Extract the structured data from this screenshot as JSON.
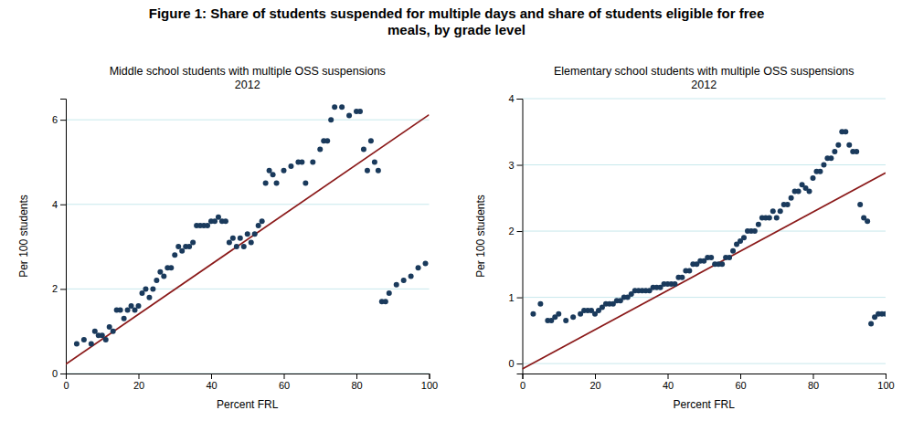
{
  "title": "Figure 1: Share of students suspended for multiple days and share of students eligible for free\nmeals, by grade level",
  "chart_data": [
    {
      "type": "scatter",
      "title": "Middle school students with multiple OSS suspensions\n2012",
      "xlabel": "Percent FRL",
      "ylabel": "Per 100 students",
      "xlim": [
        0,
        100
      ],
      "ylim": [
        0,
        6.5
      ],
      "xticks": [
        0,
        20,
        40,
        60,
        80,
        100
      ],
      "yticks": [
        0,
        2,
        4,
        6
      ],
      "grid": "y",
      "series": [
        {
          "type": "scatter",
          "color": "#1a3a5c",
          "x": [
            3,
            5,
            7,
            8,
            9,
            10,
            11,
            12,
            13,
            14,
            15,
            16,
            17,
            18,
            19,
            20,
            21,
            22,
            23,
            24,
            25,
            26,
            27,
            28,
            29,
            30,
            31,
            32,
            33,
            34,
            35,
            36,
            37,
            38,
            39,
            40,
            41,
            42,
            43,
            44,
            45,
            46,
            47,
            48,
            49,
            50,
            51,
            52,
            53,
            54,
            55,
            56,
            57,
            58,
            60,
            62,
            64,
            65,
            66,
            68,
            70,
            71,
            72,
            73,
            74,
            76,
            78,
            80,
            81,
            82,
            83,
            84,
            85,
            86,
            87,
            88,
            89,
            91,
            93,
            95,
            97,
            99
          ],
          "values": [
            0.7,
            0.8,
            0.7,
            1.0,
            0.9,
            0.9,
            0.8,
            1.1,
            1.0,
            1.5,
            1.5,
            1.3,
            1.5,
            1.6,
            1.5,
            1.6,
            1.9,
            2.0,
            1.8,
            2.0,
            2.2,
            2.4,
            2.3,
            2.5,
            2.5,
            2.8,
            3.0,
            2.9,
            3.0,
            3.0,
            3.1,
            3.5,
            3.5,
            3.5,
            3.5,
            3.6,
            3.6,
            3.7,
            3.6,
            3.6,
            3.1,
            3.2,
            3.0,
            3.2,
            3.0,
            3.3,
            3.1,
            3.3,
            3.5,
            3.6,
            4.5,
            4.8,
            4.7,
            4.5,
            4.8,
            4.9,
            5.0,
            5.0,
            4.5,
            5.0,
            5.3,
            5.5,
            5.5,
            6.0,
            6.3,
            6.3,
            6.1,
            6.2,
            6.2,
            5.3,
            4.8,
            5.5,
            5.0,
            4.8,
            1.7,
            1.7,
            1.9,
            2.1,
            2.2,
            2.3,
            2.5,
            2.6
          ]
        },
        {
          "type": "line",
          "color": "#8b1a1a",
          "x": [
            0,
            100
          ],
          "values": [
            0.22,
            6.12
          ]
        }
      ]
    },
    {
      "type": "scatter",
      "title": "Elementary school students with multiple OSS suspensions\n2012",
      "xlabel": "Percent FRL",
      "ylabel": "Per 100 students",
      "xlim": [
        0,
        100
      ],
      "ylim": [
        -0.15,
        4.0
      ],
      "xticks": [
        0,
        20,
        40,
        60,
        80,
        100
      ],
      "yticks": [
        0,
        1,
        2,
        3,
        4
      ],
      "grid": "y",
      "series": [
        {
          "type": "scatter",
          "color": "#1a3a5c",
          "x": [
            3,
            5,
            7,
            8,
            9,
            10,
            12,
            14,
            16,
            17,
            18,
            19,
            20,
            21,
            22,
            23,
            24,
            25,
            26,
            27,
            28,
            29,
            30,
            31,
            32,
            33,
            34,
            35,
            36,
            37,
            38,
            39,
            40,
            41,
            42,
            43,
            44,
            45,
            46,
            47,
            48,
            49,
            50,
            51,
            52,
            53,
            54,
            55,
            56,
            57,
            58,
            59,
            60,
            61,
            62,
            63,
            64,
            65,
            66,
            67,
            68,
            69,
            70,
            71,
            72,
            73,
            74,
            75,
            76,
            77,
            78,
            79,
            80,
            81,
            82,
            83,
            84,
            85,
            86,
            87,
            88,
            89,
            90,
            91,
            92,
            93,
            94,
            95,
            96,
            97,
            98,
            99,
            100
          ],
          "values": [
            0.75,
            0.9,
            0.65,
            0.65,
            0.7,
            0.75,
            0.65,
            0.7,
            0.75,
            0.8,
            0.8,
            0.8,
            0.75,
            0.8,
            0.85,
            0.9,
            0.9,
            0.9,
            0.95,
            0.95,
            1.0,
            1.0,
            1.05,
            1.1,
            1.1,
            1.1,
            1.1,
            1.1,
            1.15,
            1.15,
            1.15,
            1.2,
            1.2,
            1.2,
            1.2,
            1.3,
            1.3,
            1.4,
            1.4,
            1.5,
            1.5,
            1.55,
            1.55,
            1.6,
            1.6,
            1.5,
            1.5,
            1.5,
            1.6,
            1.6,
            1.7,
            1.8,
            1.85,
            1.9,
            2.0,
            2.0,
            2.0,
            2.1,
            2.2,
            2.2,
            2.2,
            2.3,
            2.2,
            2.3,
            2.4,
            2.4,
            2.5,
            2.6,
            2.6,
            2.7,
            2.65,
            2.6,
            2.8,
            2.9,
            2.9,
            3.0,
            3.1,
            3.1,
            3.2,
            3.3,
            3.5,
            3.5,
            3.3,
            3.2,
            3.2,
            2.4,
            2.2,
            2.15,
            0.6,
            0.7,
            0.75,
            0.75,
            0.75
          ]
        },
        {
          "type": "line",
          "color": "#8b1a1a",
          "x": [
            0,
            100
          ],
          "values": [
            -0.08,
            2.88
          ]
        }
      ]
    }
  ]
}
